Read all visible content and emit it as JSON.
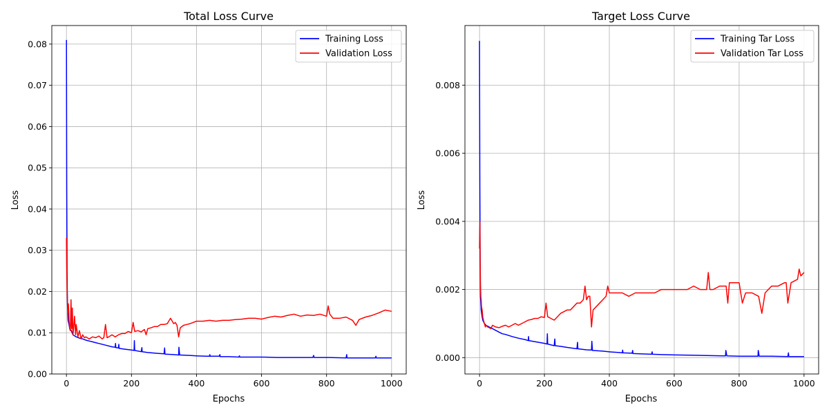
{
  "chart_data": [
    {
      "type": "line",
      "title": "Total Loss Curve",
      "xlabel": "Epochs",
      "ylabel": "Loss",
      "xlim": [
        -45,
        1045
      ],
      "ylim": [
        0,
        0.0845
      ],
      "xticks": [
        0,
        200,
        400,
        600,
        800,
        1000
      ],
      "xtick_labels": [
        "0",
        "200",
        "400",
        "600",
        "800",
        "1000"
      ],
      "yticks": [
        0.0,
        0.01,
        0.02,
        0.03,
        0.04,
        0.05,
        0.06,
        0.07,
        0.08
      ],
      "ytick_labels": [
        "0.00",
        "0.01",
        "0.02",
        "0.03",
        "0.04",
        "0.05",
        "0.06",
        "0.07",
        "0.08"
      ],
      "grid": true,
      "legend_position": "top-right",
      "series": [
        {
          "name": "Training Loss",
          "color": "#0000ff",
          "x": [
            0,
            1,
            2,
            3,
            5,
            8,
            10,
            15,
            20,
            30,
            40,
            50,
            60,
            70,
            80,
            90,
            100,
            120,
            140,
            150,
            151,
            152,
            160,
            161,
            162,
            180,
            200,
            208,
            209,
            210,
            230,
            232,
            233,
            250,
            280,
            300,
            302,
            303,
            330,
            345,
            346,
            348,
            350,
            380,
            400,
            430,
            440,
            441,
            442,
            470,
            472,
            473,
            500,
            530,
            532,
            533,
            560,
            590,
            600,
            650,
            700,
            750,
            758,
            760,
            762,
            790,
            800,
            808,
            860,
            862,
            863,
            900,
            950,
            952,
            953,
            1000
          ],
          "y": [
            0.081,
            0.045,
            0.025,
            0.017,
            0.013,
            0.012,
            0.011,
            0.0105,
            0.0095,
            0.009,
            0.0087,
            0.0085,
            0.0082,
            0.008,
            0.0078,
            0.0076,
            0.0074,
            0.007,
            0.0066,
            0.0065,
            0.0074,
            0.0064,
            0.0063,
            0.0072,
            0.0062,
            0.006,
            0.0058,
            0.0057,
            0.0081,
            0.0057,
            0.0054,
            0.0064,
            0.0054,
            0.0052,
            0.005,
            0.0049,
            0.0063,
            0.0048,
            0.0047,
            0.0046,
            0.0065,
            0.0046,
            0.0046,
            0.0045,
            0.0044,
            0.0043,
            0.0043,
            0.0047,
            0.0043,
            0.0043,
            0.0047,
            0.0042,
            0.0042,
            0.0041,
            0.0044,
            0.0041,
            0.0041,
            0.0041,
            0.0041,
            0.004,
            0.004,
            0.004,
            0.004,
            0.0045,
            0.004,
            0.004,
            0.004,
            0.004,
            0.0039,
            0.0047,
            0.0039,
            0.0039,
            0.0039,
            0.0043,
            0.0039,
            0.0039
          ]
        },
        {
          "name": "Validation Loss",
          "color": "#ff0000",
          "x": [
            0,
            1,
            2,
            3,
            4,
            5,
            6,
            8,
            10,
            12,
            14,
            16,
            18,
            20,
            22,
            25,
            28,
            30,
            35,
            40,
            45,
            50,
            55,
            60,
            70,
            80,
            90,
            100,
            110,
            115,
            120,
            125,
            130,
            140,
            150,
            160,
            170,
            180,
            190,
            200,
            205,
            210,
            220,
            230,
            240,
            245,
            250,
            260,
            270,
            280,
            290,
            300,
            310,
            320,
            330,
            335,
            340,
            345,
            350,
            360,
            370,
            380,
            390,
            400,
            420,
            440,
            460,
            480,
            500,
            520,
            540,
            560,
            580,
            600,
            620,
            640,
            660,
            680,
            700,
            720,
            740,
            760,
            780,
            800,
            805,
            810,
            820,
            840,
            860,
            880,
            890,
            900,
            920,
            940,
            960,
            980,
            1000
          ],
          "y": [
            0.033,
            0.026,
            0.021,
            0.018,
            0.016,
            0.015,
            0.017,
            0.013,
            0.011,
            0.0105,
            0.018,
            0.011,
            0.016,
            0.0095,
            0.011,
            0.014,
            0.0095,
            0.012,
            0.009,
            0.0105,
            0.0085,
            0.0095,
            0.0088,
            0.009,
            0.0085,
            0.009,
            0.0088,
            0.0092,
            0.0085,
            0.0088,
            0.012,
            0.0088,
            0.009,
            0.0095,
            0.009,
            0.0095,
            0.0098,
            0.0098,
            0.0103,
            0.01,
            0.0125,
            0.0103,
            0.0105,
            0.0102,
            0.0108,
            0.0095,
            0.011,
            0.0112,
            0.0115,
            0.0115,
            0.012,
            0.012,
            0.0122,
            0.0135,
            0.0122,
            0.0125,
            0.0118,
            0.009,
            0.0112,
            0.0118,
            0.012,
            0.0122,
            0.0125,
            0.0128,
            0.0128,
            0.013,
            0.0128,
            0.013,
            0.013,
            0.0132,
            0.0133,
            0.0135,
            0.0135,
            0.0133,
            0.0137,
            0.014,
            0.0138,
            0.0142,
            0.0145,
            0.014,
            0.0143,
            0.0142,
            0.0145,
            0.014,
            0.0165,
            0.0145,
            0.0135,
            0.0135,
            0.0138,
            0.013,
            0.0118,
            0.0132,
            0.0138,
            0.0142,
            0.0148,
            0.0155,
            0.0152
          ]
        }
      ]
    },
    {
      "type": "line",
      "title": "Target Loss Curve",
      "xlabel": "Epochs",
      "ylabel": "Loss",
      "xlim": [
        -45,
        1045
      ],
      "ylim": [
        -0.00048,
        0.00975
      ],
      "xticks": [
        0,
        200,
        400,
        600,
        800,
        1000
      ],
      "xtick_labels": [
        "0",
        "200",
        "400",
        "600",
        "800",
        "1000"
      ],
      "yticks": [
        0.0,
        0.002,
        0.004,
        0.006,
        0.008
      ],
      "ytick_labels": [
        "0.000",
        "0.002",
        "0.004",
        "0.006",
        "0.008"
      ],
      "grid": true,
      "legend_position": "top-right",
      "series": [
        {
          "name": "Training Tar Loss",
          "color": "#0000ff",
          "x": [
            0,
            1,
            2,
            3,
            5,
            8,
            10,
            15,
            20,
            30,
            40,
            50,
            60,
            70,
            80,
            100,
            120,
            140,
            150,
            151,
            152,
            170,
            200,
            208,
            209,
            210,
            230,
            232,
            233,
            250,
            270,
            300,
            302,
            303,
            330,
            345,
            346,
            348,
            380,
            400,
            430,
            440,
            441,
            442,
            470,
            472,
            473,
            500,
            530,
            532,
            533,
            560,
            600,
            650,
            700,
            750,
            758,
            759,
            762,
            800,
            850,
            858,
            859,
            862,
            900,
            950,
            952,
            953,
            1000
          ],
          "y": [
            0.0093,
            0.005,
            0.0025,
            0.0018,
            0.0014,
            0.0012,
            0.0011,
            0.001,
            0.00095,
            0.0009,
            0.00085,
            0.0008,
            0.00075,
            0.0007,
            0.00068,
            0.00062,
            0.00057,
            0.00053,
            0.0005,
            0.00062,
            0.0005,
            0.00047,
            0.00042,
            0.0004,
            0.0007,
            0.0004,
            0.00035,
            0.00055,
            0.00035,
            0.00033,
            0.0003,
            0.00026,
            0.00045,
            0.00026,
            0.00023,
            0.00022,
            0.00048,
            0.00021,
            0.00019,
            0.00017,
            0.00015,
            0.00014,
            0.00022,
            0.00014,
            0.00013,
            0.00021,
            0.00012,
            0.00011,
            0.0001,
            0.00017,
            0.0001,
            9e-05,
            8e-05,
            7e-05,
            6e-05,
            5e-05,
            5e-05,
            0.00021,
            5e-05,
            4e-05,
            4e-05,
            4e-05,
            0.00021,
            4e-05,
            4e-05,
            3e-05,
            0.00014,
            3e-05,
            3e-05
          ]
        },
        {
          "name": "Validation Tar Loss",
          "color": "#ff0000",
          "x": [
            0,
            1,
            2,
            3,
            4,
            5,
            6,
            8,
            10,
            12,
            15,
            18,
            20,
            25,
            30,
            35,
            40,
            50,
            60,
            70,
            80,
            90,
            100,
            110,
            120,
            130,
            140,
            150,
            160,
            170,
            180,
            190,
            200,
            205,
            210,
            220,
            230,
            240,
            250,
            260,
            270,
            280,
            290,
            300,
            310,
            320,
            325,
            330,
            335,
            340,
            345,
            350,
            360,
            370,
            380,
            390,
            395,
            400,
            420,
            440,
            460,
            480,
            500,
            520,
            540,
            560,
            580,
            600,
            620,
            640,
            660,
            680,
            700,
            705,
            710,
            720,
            740,
            760,
            765,
            770,
            780,
            800,
            810,
            820,
            840,
            860,
            870,
            880,
            900,
            920,
            940,
            945,
            950,
            960,
            980,
            985,
            990,
            1000
          ],
          "y": [
            0.0032,
            0.004,
            0.0028,
            0.0021,
            0.0018,
            0.0017,
            0.0015,
            0.0014,
            0.0012,
            0.0011,
            0.001,
            0.0009,
            0.00095,
            0.0009,
            0.00088,
            0.00085,
            0.00095,
            0.0009,
            0.00088,
            0.00092,
            0.00095,
            0.0009,
            0.00095,
            0.001,
            0.00095,
            0.001,
            0.00105,
            0.0011,
            0.00112,
            0.00115,
            0.00115,
            0.0012,
            0.00118,
            0.0016,
            0.0012,
            0.00115,
            0.0011,
            0.0012,
            0.0013,
            0.00135,
            0.0014,
            0.0014,
            0.0015,
            0.0016,
            0.0016,
            0.0017,
            0.0021,
            0.0017,
            0.0018,
            0.0018,
            0.0009,
            0.0014,
            0.0015,
            0.0016,
            0.0017,
            0.0018,
            0.0021,
            0.0019,
            0.0019,
            0.0019,
            0.0018,
            0.0019,
            0.0019,
            0.0019,
            0.0019,
            0.002,
            0.002,
            0.002,
            0.002,
            0.002,
            0.0021,
            0.002,
            0.002,
            0.0025,
            0.002,
            0.002,
            0.0021,
            0.0021,
            0.0016,
            0.0022,
            0.0022,
            0.0022,
            0.0016,
            0.0019,
            0.0019,
            0.0018,
            0.0013,
            0.0019,
            0.0021,
            0.0021,
            0.0022,
            0.0022,
            0.0016,
            0.0022,
            0.0023,
            0.0026,
            0.0024,
            0.0025
          ]
        }
      ]
    }
  ]
}
